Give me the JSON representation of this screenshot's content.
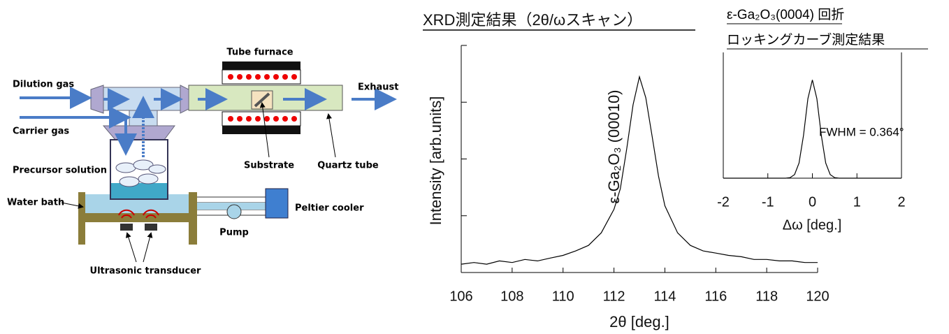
{
  "diagram": {
    "labels": {
      "tube_furnace": "Tube furnace",
      "dilution_gas": "Dilution gas",
      "exhaust": "Exhaust",
      "carrier_gas": "Carrier gas",
      "substrate": "Substrate",
      "quartz_tube": "Quartz tube",
      "precursor_solution": "Precursor solution",
      "water_bath": "Water bath",
      "peltier_cooler": "Peltier cooler",
      "pump": "Pump",
      "ultrasonic_transducer": "Ultrasonic transducer"
    }
  },
  "chart_data": [
    {
      "type": "line",
      "title": "XRD測定結果（2θ/ωスキャン）",
      "annotation": "ε-Ga₂O₃ (00010)",
      "x_label": "2θ [deg.]",
      "y_label": "Intensity [arb.units]",
      "color": "#000000",
      "log_y": true,
      "x": [
        106,
        106.5,
        107,
        107.5,
        108,
        108.5,
        109,
        109.5,
        110,
        110.5,
        111,
        111.5,
        112,
        112.25,
        112.5,
        112.75,
        113,
        113.25,
        113.5,
        113.75,
        114,
        114.5,
        115,
        115.5,
        116,
        116.5,
        117,
        117.5,
        118,
        118.5,
        119,
        119.5,
        120
      ],
      "values": [
        14,
        15,
        14,
        16,
        15,
        17,
        16,
        18,
        20,
        24,
        30,
        50,
        130,
        300,
        1500,
        9000,
        28000,
        12000,
        2500,
        500,
        150,
        50,
        30,
        24,
        22,
        20,
        19,
        17,
        17,
        16,
        16,
        15,
        15
      ],
      "xlim": [
        106,
        120
      ],
      "xticks": [
        106,
        108,
        110,
        112,
        114,
        116,
        118,
        120
      ],
      "ylim": [
        10,
        100000
      ],
      "yticks": [
        10,
        100,
        1000,
        10000,
        100000
      ]
    },
    {
      "type": "line",
      "title": "ε-Ga₂O₃(0004) 回折",
      "subtitle": "ロッキングカーブ測定結果",
      "annotation": "FWHM = 0.364°",
      "x_label": "Δω [deg.]",
      "color": "#000000",
      "log_y": false,
      "x": [
        -2,
        -1,
        -0.6,
        -0.5,
        -0.4,
        -0.3,
        -0.2,
        -0.1,
        0,
        0.1,
        0.2,
        0.3,
        0.4,
        0.5,
        0.6,
        1,
        2
      ],
      "values": [
        0,
        0,
        0,
        0.0055,
        0.036,
        0.154,
        0.435,
        0.81,
        1,
        0.81,
        0.435,
        0.154,
        0.036,
        0.0055,
        0,
        0,
        0
      ],
      "xlim": [
        -2,
        2
      ],
      "xticks": [
        -2,
        -1,
        0,
        1,
        2
      ],
      "ylim": [
        0,
        1.28
      ]
    }
  ]
}
